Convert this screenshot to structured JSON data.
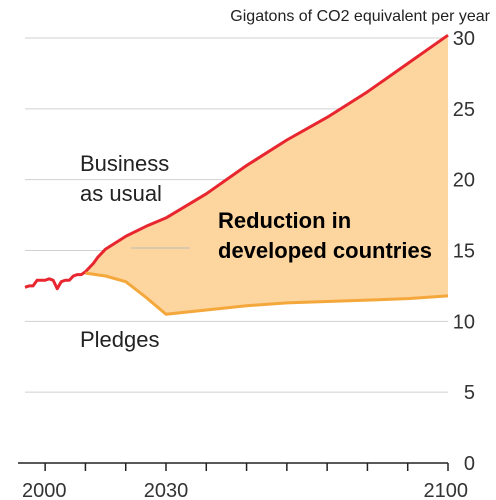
{
  "chart_data": {
    "type": "area",
    "unit_label": "Gigatons of CO2 equivalent per year",
    "xlim": [
      1995,
      2100
    ],
    "ylim": [
      0,
      30
    ],
    "x_ticks": [
      2000,
      2030,
      2100
    ],
    "y_ticks": [
      5,
      10,
      15,
      20,
      25,
      30
    ],
    "grid": "horizontal",
    "series": [
      {
        "name": "Business as usual",
        "color": "#e8262f",
        "x": [
          1995,
          1996,
          1997,
          1998,
          1999,
          2000,
          2001,
          2002,
          2003,
          2004,
          2005,
          2006,
          2007,
          2008,
          2009,
          2010,
          2011,
          2012,
          2013,
          2014,
          2015,
          2020,
          2025,
          2030,
          2040,
          2050,
          2060,
          2070,
          2080,
          2090,
          2100
        ],
        "values": [
          12.4,
          12.5,
          12.5,
          12.9,
          12.9,
          12.9,
          13.0,
          12.9,
          12.3,
          12.8,
          12.9,
          12.9,
          13.2,
          13.3,
          13.3,
          13.5,
          13.8,
          14.1,
          14.5,
          14.8,
          15.1,
          16.0,
          16.7,
          17.3,
          19.0,
          21.0,
          22.8,
          24.4,
          26.2,
          28.2,
          30.2
        ]
      },
      {
        "name": "Pledges",
        "color": "#f4a73b",
        "x": [
          2010,
          2015,
          2020,
          2025,
          2030,
          2040,
          2050,
          2060,
          2070,
          2080,
          2090,
          2100
        ],
        "values": [
          13.4,
          13.2,
          12.8,
          11.7,
          10.5,
          10.8,
          11.1,
          11.3,
          11.4,
          11.5,
          11.6,
          11.8
        ]
      }
    ],
    "fill": {
      "label": "Reduction in developed countries",
      "color": "#fdd59e"
    },
    "annotations": {
      "business_line1": "Business",
      "business_line2": "as usual",
      "reduction_line1": "Reduction in",
      "reduction_line2": "developed countries",
      "pledges": "Pledges"
    }
  }
}
